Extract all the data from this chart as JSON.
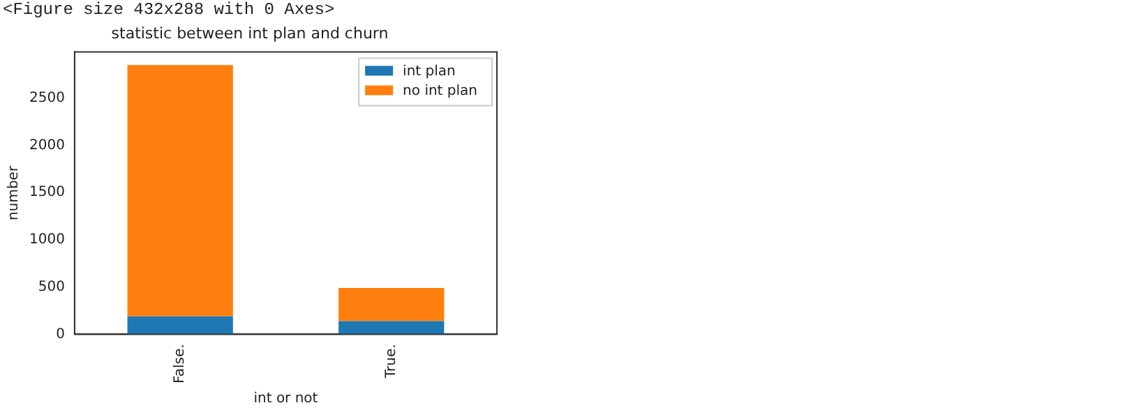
{
  "chart_data": {
    "type": "bar",
    "title": "statistic between int plan and churn",
    "xlabel": "int or not",
    "ylabel": "number",
    "annotations": [
      "<Figure size 432x288 with 0 Axes>"
    ],
    "categories": [
      "False.",
      "True."
    ],
    "series": [
      {
        "name": "int plan",
        "color": "#1f77b4",
        "values": [
          190,
          140
        ]
      },
      {
        "name": "no int plan",
        "color": "#ff7f0e",
        "values": [
          2660,
          350
        ]
      }
    ],
    "stacked": true,
    "ylim": [
      0,
      2990
    ],
    "yticks": [
      0,
      500,
      1000,
      1500,
      2000,
      2500
    ],
    "grid": false,
    "legend": "top right"
  }
}
